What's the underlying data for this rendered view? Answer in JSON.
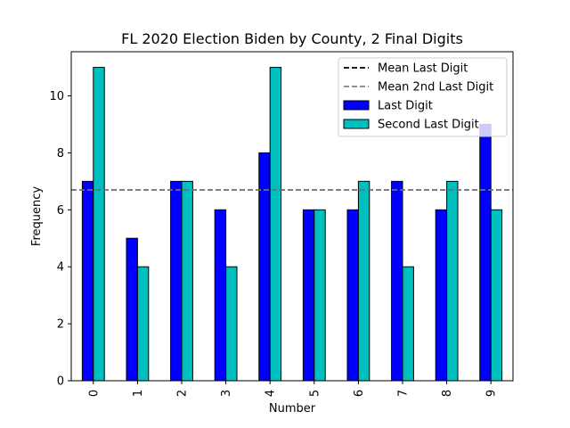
{
  "chart_data": {
    "type": "bar",
    "title": "FL 2020 Election Biden by County, 2 Final Digits",
    "xlabel": "Number",
    "ylabel": "Frequency",
    "categories": [
      "0",
      "1",
      "2",
      "3",
      "4",
      "5",
      "6",
      "7",
      "8",
      "9"
    ],
    "series": [
      {
        "name": "Last Digit",
        "color": "#0000ff",
        "values": [
          7,
          5,
          7,
          6,
          8,
          6,
          6,
          7,
          6,
          9
        ]
      },
      {
        "name": "Second Last Digit",
        "color": "#00bfbf",
        "values": [
          11,
          4,
          7,
          4,
          11,
          6,
          7,
          4,
          7,
          6
        ]
      }
    ],
    "reference_lines": [
      {
        "name": "Mean Last Digit",
        "value": 6.7,
        "color": "#000000",
        "style": "dashed"
      },
      {
        "name": "Mean 2nd Last Digit",
        "value": 6.7,
        "color": "#808080",
        "style": "dashed"
      }
    ],
    "ylim": [
      0,
      11.55
    ],
    "yticks": [
      0,
      2,
      4,
      6,
      8,
      10
    ],
    "grid": false,
    "legend_position": "top-right"
  }
}
